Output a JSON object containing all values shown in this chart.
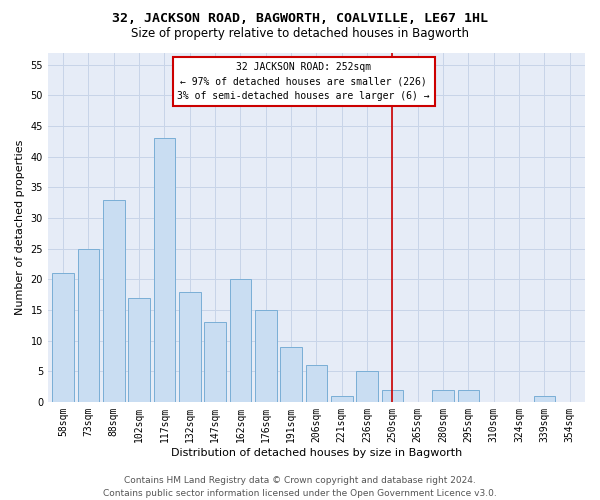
{
  "title": "32, JACKSON ROAD, BAGWORTH, COALVILLE, LE67 1HL",
  "subtitle": "Size of property relative to detached houses in Bagworth",
  "xlabel": "Distribution of detached houses by size in Bagworth",
  "ylabel": "Number of detached properties",
  "bar_labels": [
    "58sqm",
    "73sqm",
    "88sqm",
    "102sqm",
    "117sqm",
    "132sqm",
    "147sqm",
    "162sqm",
    "176sqm",
    "191sqm",
    "206sqm",
    "221sqm",
    "236sqm",
    "250sqm",
    "265sqm",
    "280sqm",
    "295sqm",
    "310sqm",
    "324sqm",
    "339sqm",
    "354sqm"
  ],
  "bar_values": [
    21,
    25,
    33,
    17,
    43,
    18,
    13,
    20,
    15,
    9,
    6,
    1,
    5,
    2,
    0,
    2,
    2,
    0,
    0,
    1,
    0
  ],
  "bar_color": "#c9ddf2",
  "bar_edge_color": "#7aaed6",
  "reference_line_x": 13,
  "annotation_line1": "32 JACKSON ROAD: 252sqm",
  "annotation_line2": "← 97% of detached houses are smaller (226)",
  "annotation_line3": "3% of semi-detached houses are larger (6) →",
  "annotation_box_color": "#ffffff",
  "annotation_box_edge": "#cc0000",
  "vline_color": "#cc0000",
  "ylim": [
    0,
    57
  ],
  "yticks": [
    0,
    5,
    10,
    15,
    20,
    25,
    30,
    35,
    40,
    45,
    50,
    55
  ],
  "grid_color": "#c8d4e8",
  "bg_color": "#e6ecf7",
  "footer_line1": "Contains HM Land Registry data © Crown copyright and database right 2024.",
  "footer_line2": "Contains public sector information licensed under the Open Government Licence v3.0.",
  "title_fontsize": 9.5,
  "subtitle_fontsize": 8.5,
  "xlabel_fontsize": 8,
  "ylabel_fontsize": 8,
  "tick_fontsize": 7,
  "annotation_fontsize": 7,
  "footer_fontsize": 6.5
}
